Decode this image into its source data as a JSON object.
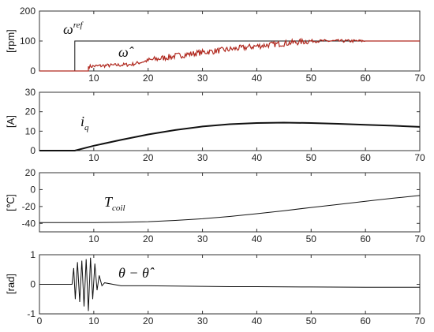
{
  "chart_data": [
    {
      "type": "line",
      "ylabel": "[rpm]",
      "xlim": [
        0,
        70
      ],
      "ylim": [
        0,
        200
      ],
      "xticks": [
        10,
        20,
        30,
        40,
        50,
        60,
        70
      ],
      "yticks": [
        0,
        100,
        200
      ],
      "annotations": [
        {
          "text": "ω",
          "sup": "ref"
        },
        {
          "text": "ω̂"
        }
      ],
      "series": [
        {
          "name": "ω ref",
          "color": "#111111",
          "points": [
            [
              0,
              0
            ],
            [
              6.5,
              0
            ],
            [
              6.5,
              100
            ],
            [
              70,
              100
            ]
          ]
        },
        {
          "name": "ω̂",
          "color": "#b0281e",
          "noisy": true,
          "points": [
            [
              0,
              0
            ],
            [
              9,
              0
            ],
            [
              9,
              15
            ],
            [
              12,
              18
            ],
            [
              15,
              20
            ],
            [
              17,
              22
            ],
            [
              20,
              35
            ],
            [
              25,
              50
            ],
            [
              30,
              62
            ],
            [
              35,
              72
            ],
            [
              40,
              83
            ],
            [
              45,
              92
            ],
            [
              48,
              97
            ],
            [
              50,
              100
            ],
            [
              70,
              100
            ]
          ]
        }
      ]
    },
    {
      "type": "line",
      "ylabel": "[A]",
      "xlim": [
        0,
        70
      ],
      "ylim": [
        0,
        30
      ],
      "xticks": [
        10,
        20,
        30,
        40,
        50,
        60,
        70
      ],
      "yticks": [
        0,
        10,
        20,
        30
      ],
      "annotations": [
        {
          "text": "i",
          "sub": "q"
        }
      ],
      "series": [
        {
          "name": "i_q",
          "color": "#111111",
          "points": [
            [
              0,
              0
            ],
            [
              6.5,
              0
            ],
            [
              10,
              2.5
            ],
            [
              15,
              5.5
            ],
            [
              20,
              8.3
            ],
            [
              25,
              10.6
            ],
            [
              30,
              12.4
            ],
            [
              35,
              13.6
            ],
            [
              40,
              14.2
            ],
            [
              45,
              14.4
            ],
            [
              50,
              14.2
            ],
            [
              55,
              13.8
            ],
            [
              60,
              13.3
            ],
            [
              65,
              12.8
            ],
            [
              70,
              12.2
            ]
          ]
        }
      ]
    },
    {
      "type": "line",
      "ylabel": "[℃]",
      "xlim": [
        0,
        70
      ],
      "ylim": [
        -50,
        20
      ],
      "xticks": [
        10,
        20,
        30,
        40,
        50,
        60,
        70
      ],
      "yticks": [
        -40,
        -20,
        0,
        20
      ],
      "annotations": [
        {
          "text": "T",
          "sub": "coil"
        }
      ],
      "series": [
        {
          "name": "T_coil",
          "color": "#111111",
          "points": [
            [
              0,
              -39
            ],
            [
              10,
              -39
            ],
            [
              15,
              -38.7
            ],
            [
              20,
              -38
            ],
            [
              25,
              -36.5
            ],
            [
              30,
              -34.5
            ],
            [
              35,
              -31.8
            ],
            [
              40,
              -28.5
            ],
            [
              45,
              -25
            ],
            [
              50,
              -21.2
            ],
            [
              55,
              -17.5
            ],
            [
              60,
              -13.8
            ],
            [
              65,
              -10.2
            ],
            [
              70,
              -7
            ]
          ]
        }
      ]
    },
    {
      "type": "line",
      "ylabel": "[rad]",
      "xlim": [
        0,
        70
      ],
      "ylim": [
        -1,
        1
      ],
      "xticks": [
        0,
        10,
        20,
        30,
        40,
        50,
        60,
        70
      ],
      "yticks": [
        -1,
        0,
        1
      ],
      "annotations": [
        {
          "text": "θ − θ̂"
        }
      ],
      "series": [
        {
          "name": "θ − θ̂",
          "color": "#111111",
          "points": [
            [
              0,
              0
            ],
            [
              6,
              0
            ],
            [
              6.3,
              0.55
            ],
            [
              6.6,
              -0.5
            ],
            [
              7,
              0.75
            ],
            [
              7.4,
              -0.6
            ],
            [
              7.8,
              0.8
            ],
            [
              8.2,
              -0.75
            ],
            [
              8.6,
              0.85
            ],
            [
              9,
              -0.9
            ],
            [
              9.4,
              0.9
            ],
            [
              9.8,
              -0.5
            ],
            [
              10.2,
              0.7
            ],
            [
              10.6,
              -0.2
            ],
            [
              11,
              0.3
            ],
            [
              11.5,
              -0.05
            ],
            [
              12,
              0.05
            ],
            [
              15,
              -0.05
            ],
            [
              20,
              -0.05
            ],
            [
              25,
              -0.06
            ],
            [
              30,
              -0.07
            ],
            [
              35,
              -0.08
            ],
            [
              40,
              -0.08
            ],
            [
              50,
              -0.09
            ],
            [
              60,
              -0.1
            ],
            [
              70,
              -0.1
            ]
          ]
        }
      ]
    }
  ]
}
